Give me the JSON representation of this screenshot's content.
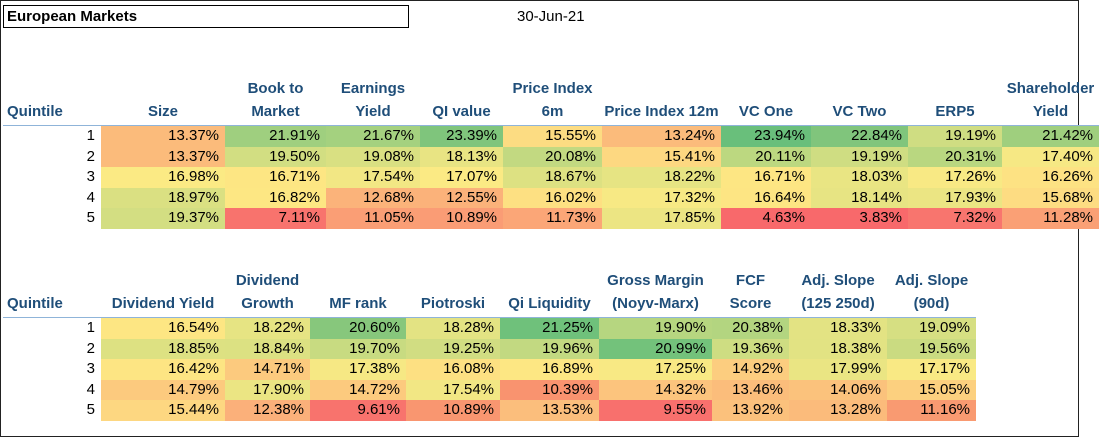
{
  "header": {
    "title": "European Markets",
    "date": "30-Jun-21"
  },
  "table1": {
    "headers": [
      "Quintile",
      "Size",
      "Book to Market",
      "Earnings Yield",
      "QI value",
      "Price Index 6m",
      "Price Index 12m",
      "VC One",
      "VC Two",
      "ERP5",
      "Shareholder Yield"
    ],
    "rows": [
      {
        "q": "1",
        "cells": [
          {
            "v": "13.37%",
            "c": "#fbbb7b"
          },
          {
            "v": "21.91%",
            "c": "#9fcf7f"
          },
          {
            "v": "21.67%",
            "c": "#a4d17f"
          },
          {
            "v": "23.39%",
            "c": "#7fc57c"
          },
          {
            "v": "15.55%",
            "c": "#fcdc82"
          },
          {
            "v": "13.24%",
            "c": "#fbbb7b"
          },
          {
            "v": "23.94%",
            "c": "#69bf7b"
          },
          {
            "v": "22.84%",
            "c": "#80c57c"
          },
          {
            "v": "19.19%",
            "c": "#cfdd82"
          },
          {
            "v": "21.42%",
            "c": "#9fcf7e"
          }
        ]
      },
      {
        "q": "2",
        "cells": [
          {
            "v": "13.37%",
            "c": "#fbbb7b"
          },
          {
            "v": "19.50%",
            "c": "#d2de82"
          },
          {
            "v": "19.08%",
            "c": "#d9e082"
          },
          {
            "v": "18.13%",
            "c": "#e8e483"
          },
          {
            "v": "20.08%",
            "c": "#c2d981"
          },
          {
            "v": "15.41%",
            "c": "#fdd881"
          },
          {
            "v": "20.11%",
            "c": "#bcd880"
          },
          {
            "v": "19.19%",
            "c": "#cfdd82"
          },
          {
            "v": "20.31%",
            "c": "#b9d780"
          },
          {
            "v": "17.40%",
            "c": "#f6e884"
          }
        ]
      },
      {
        "q": "3",
        "cells": [
          {
            "v": "16.98%",
            "c": "#fbea84"
          },
          {
            "v": "16.71%",
            "c": "#fde683"
          },
          {
            "v": "17.54%",
            "c": "#f2e784"
          },
          {
            "v": "17.07%",
            "c": "#fbea84"
          },
          {
            "v": "18.67%",
            "c": "#dde182"
          },
          {
            "v": "18.22%",
            "c": "#e6e483"
          },
          {
            "v": "16.71%",
            "c": "#fde683"
          },
          {
            "v": "18.03%",
            "c": "#e9e583"
          },
          {
            "v": "17.26%",
            "c": "#f8e984"
          },
          {
            "v": "16.26%",
            "c": "#fde283"
          }
        ]
      },
      {
        "q": "4",
        "cells": [
          {
            "v": "18.97%",
            "c": "#dae082"
          },
          {
            "v": "16.82%",
            "c": "#fde783"
          },
          {
            "v": "12.68%",
            "c": "#fbb37a"
          },
          {
            "v": "12.55%",
            "c": "#fbb27a"
          },
          {
            "v": "16.02%",
            "c": "#fde082"
          },
          {
            "v": "17.32%",
            "c": "#f7e984"
          },
          {
            "v": "16.64%",
            "c": "#fde583"
          },
          {
            "v": "18.14%",
            "c": "#e7e483"
          },
          {
            "v": "17.93%",
            "c": "#ebe583"
          },
          {
            "v": "15.68%",
            "c": "#fddc82"
          }
        ]
      },
      {
        "q": "5",
        "cells": [
          {
            "v": "19.37%",
            "c": "#d3de82"
          },
          {
            "v": "7.11%",
            "c": "#f8736d"
          },
          {
            "v": "11.05%",
            "c": "#fa9e75"
          },
          {
            "v": "10.89%",
            "c": "#fa9c75"
          },
          {
            "v": "11.73%",
            "c": "#fba677"
          },
          {
            "v": "17.85%",
            "c": "#ece583"
          },
          {
            "v": "4.63%",
            "c": "#f8696b"
          },
          {
            "v": "3.83%",
            "c": "#f8696b"
          },
          {
            "v": "7.32%",
            "c": "#f8756e"
          },
          {
            "v": "11.28%",
            "c": "#faa075"
          }
        ]
      }
    ]
  },
  "table2": {
    "headers": [
      "Quintile",
      "Dividend Yield",
      "Dividend Growth",
      "MF rank",
      "Piotroski",
      "Qi Liquidity",
      "Gross Margin (Noyv-Marx)",
      "FCF Score",
      "Adj. Slope (125 250d)",
      "Adj. Slope (90d)"
    ],
    "rows": [
      {
        "q": "1",
        "cells": [
          {
            "v": "16.54%",
            "c": "#fde683"
          },
          {
            "v": "18.22%",
            "c": "#e6e483"
          },
          {
            "v": "20.60%",
            "c": "#87c77c"
          },
          {
            "v": "18.28%",
            "c": "#e3e383"
          },
          {
            "v": "21.25%",
            "c": "#6fc17b"
          },
          {
            "v": "19.90%",
            "c": "#b6d680"
          },
          {
            "v": "20.38%",
            "c": "#b3d580"
          },
          {
            "v": "18.33%",
            "c": "#e3e383"
          },
          {
            "v": "19.09%",
            "c": "#d6df82"
          }
        ]
      },
      {
        "q": "2",
        "cells": [
          {
            "v": "18.85%",
            "c": "#dde182"
          },
          {
            "v": "18.84%",
            "c": "#dce182"
          },
          {
            "v": "19.70%",
            "c": "#c8db81"
          },
          {
            "v": "19.25%",
            "c": "#d1dd82"
          },
          {
            "v": "19.96%",
            "c": "#c2d981"
          },
          {
            "v": "20.99%",
            "c": "#73c27b"
          },
          {
            "v": "19.36%",
            "c": "#cedd82"
          },
          {
            "v": "18.38%",
            "c": "#e2e383"
          },
          {
            "v": "19.56%",
            "c": "#cadb81"
          }
        ]
      },
      {
        "q": "3",
        "cells": [
          {
            "v": "16.42%",
            "c": "#fde583"
          },
          {
            "v": "14.71%",
            "c": "#fcca7e"
          },
          {
            "v": "17.38%",
            "c": "#f6e884"
          },
          {
            "v": "16.08%",
            "c": "#fde082"
          },
          {
            "v": "16.89%",
            "c": "#fde783"
          },
          {
            "v": "17.25%",
            "c": "#f8e984"
          },
          {
            "v": "14.92%",
            "c": "#fccd7f"
          },
          {
            "v": "17.99%",
            "c": "#eae583"
          },
          {
            "v": "17.17%",
            "c": "#f9e984"
          }
        ]
      },
      {
        "q": "4",
        "cells": [
          {
            "v": "14.79%",
            "c": "#fcca7e"
          },
          {
            "v": "17.90%",
            "c": "#ebe583"
          },
          {
            "v": "14.72%",
            "c": "#fcca7e"
          },
          {
            "v": "17.54%",
            "c": "#f2e784"
          },
          {
            "v": "10.39%",
            "c": "#f9936f"
          },
          {
            "v": "14.32%",
            "c": "#fcc47d"
          },
          {
            "v": "13.46%",
            "c": "#fbbd7b"
          },
          {
            "v": "14.06%",
            "c": "#fbc27c"
          },
          {
            "v": "15.05%",
            "c": "#fcd07f"
          }
        ]
      },
      {
        "q": "5",
        "cells": [
          {
            "v": "15.44%",
            "c": "#fdd781"
          },
          {
            "v": "12.38%",
            "c": "#fbb07a"
          },
          {
            "v": "9.61%",
            "c": "#f8736d"
          },
          {
            "v": "10.89%",
            "c": "#f99670"
          },
          {
            "v": "13.53%",
            "c": "#fbbe7c"
          },
          {
            "v": "9.55%",
            "c": "#f8706d"
          },
          {
            "v": "13.92%",
            "c": "#fbc17c"
          },
          {
            "v": "13.28%",
            "c": "#fbbb7b"
          },
          {
            "v": "11.16%",
            "c": "#f99a71"
          }
        ]
      }
    ]
  }
}
